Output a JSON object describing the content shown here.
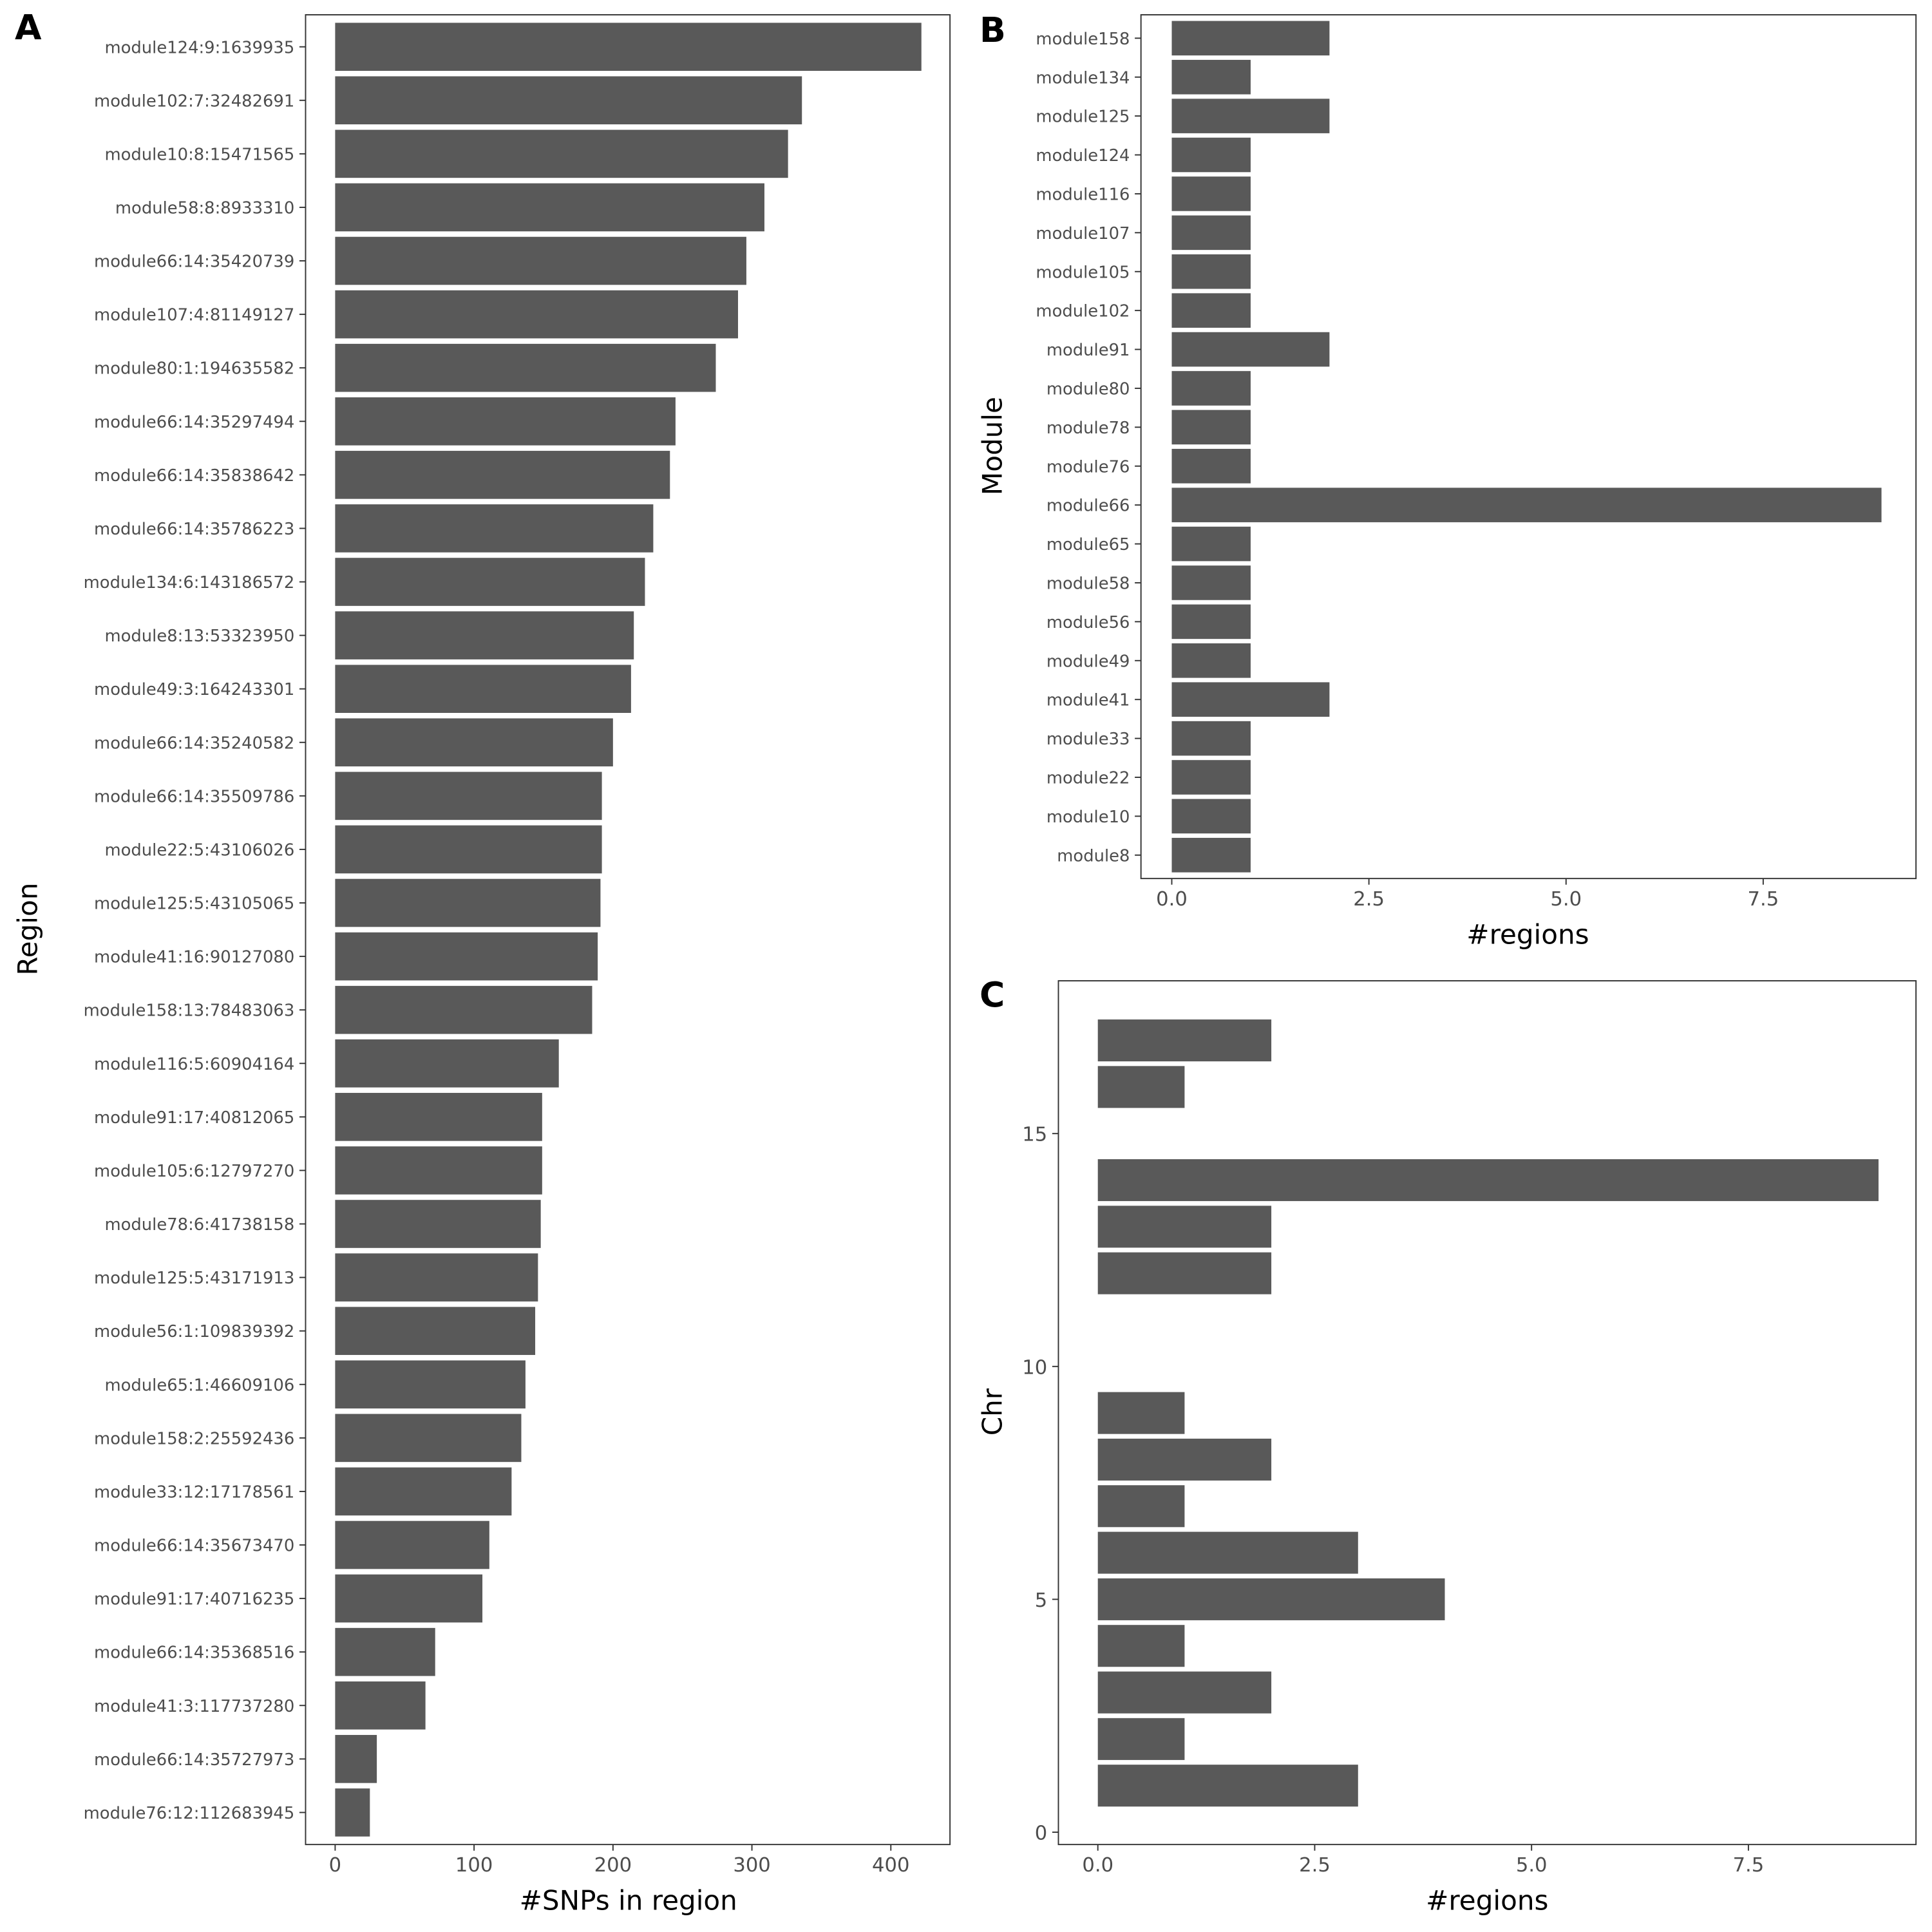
{
  "chart_data": [
    {
      "panel": "A",
      "type": "bar",
      "orientation": "horizontal",
      "xlabel": "#SNPs in region",
      "ylabel": "Region",
      "xlim": [
        0,
        440
      ],
      "xticks": [
        "0",
        "100",
        "200",
        "300",
        "400"
      ],
      "grid": false,
      "bar_color": "#595959",
      "categories": [
        "module124:9:1639935",
        "module102:7:32482691",
        "module10:8:15471565",
        "module58:8:8933310",
        "module66:14:35420739",
        "module107:4:81149127",
        "module80:1:194635582",
        "module66:14:35297494",
        "module66:14:35838642",
        "module66:14:35786223",
        "module134:6:143186572",
        "module8:13:53323950",
        "module49:3:164243301",
        "module66:14:35240582",
        "module66:14:35509786",
        "module22:5:43106026",
        "module125:5:43105065",
        "module41:16:90127080",
        "module158:13:78483063",
        "module116:5:60904164",
        "module91:17:40812065",
        "module105:6:12797270",
        "module78:6:41738158",
        "module125:5:43171913",
        "module56:1:109839392",
        "module65:1:46609106",
        "module158:2:25592436",
        "module33:12:17178561",
        "module66:14:35673470",
        "module91:17:40716235",
        "module66:14:35368516",
        "module41:3:117737280",
        "module66:14:35727973",
        "module76:12:112683945"
      ],
      "values": [
        422,
        336,
        326,
        309,
        296,
        290,
        274,
        245,
        241,
        229,
        223,
        215,
        213,
        200,
        192,
        192,
        191,
        189,
        185,
        161,
        149,
        149,
        148,
        146,
        144,
        137,
        134,
        127,
        111,
        106,
        72,
        65,
        30,
        25
      ]
    },
    {
      "panel": "B",
      "type": "bar",
      "orientation": "horizontal",
      "xlabel": "#regions",
      "ylabel": "Module",
      "xlim": [
        0,
        9.4
      ],
      "xticks": [
        "0.0",
        "2.5",
        "5.0",
        "7.5"
      ],
      "grid": false,
      "bar_color": "#595959",
      "categories": [
        "module158",
        "module134",
        "module125",
        "module124",
        "module116",
        "module107",
        "module105",
        "module102",
        "module91",
        "module80",
        "module78",
        "module76",
        "module66",
        "module65",
        "module58",
        "module56",
        "module49",
        "module41",
        "module33",
        "module22",
        "module10",
        "module8"
      ],
      "values": [
        2,
        1,
        2,
        1,
        1,
        1,
        1,
        1,
        2,
        1,
        1,
        1,
        9,
        1,
        1,
        1,
        1,
        2,
        1,
        1,
        1,
        1
      ]
    },
    {
      "panel": "C",
      "type": "bar",
      "orientation": "horizontal",
      "xlabel": "#regions",
      "ylabel": "Chr",
      "xlim": [
        0,
        9.4
      ],
      "ylim": [
        0,
        18
      ],
      "xticks": [
        "0.0",
        "2.5",
        "5.0",
        "7.5"
      ],
      "yticks": [
        "0",
        "5",
        "10",
        "15"
      ],
      "grid": false,
      "bar_color": "#595959",
      "chr": [
        1,
        2,
        3,
        4,
        5,
        6,
        7,
        8,
        9,
        12,
        13,
        14,
        16,
        17
      ],
      "values": [
        3,
        1,
        2,
        1,
        4,
        3,
        1,
        2,
        1,
        2,
        2,
        9,
        1,
        2
      ]
    }
  ]
}
